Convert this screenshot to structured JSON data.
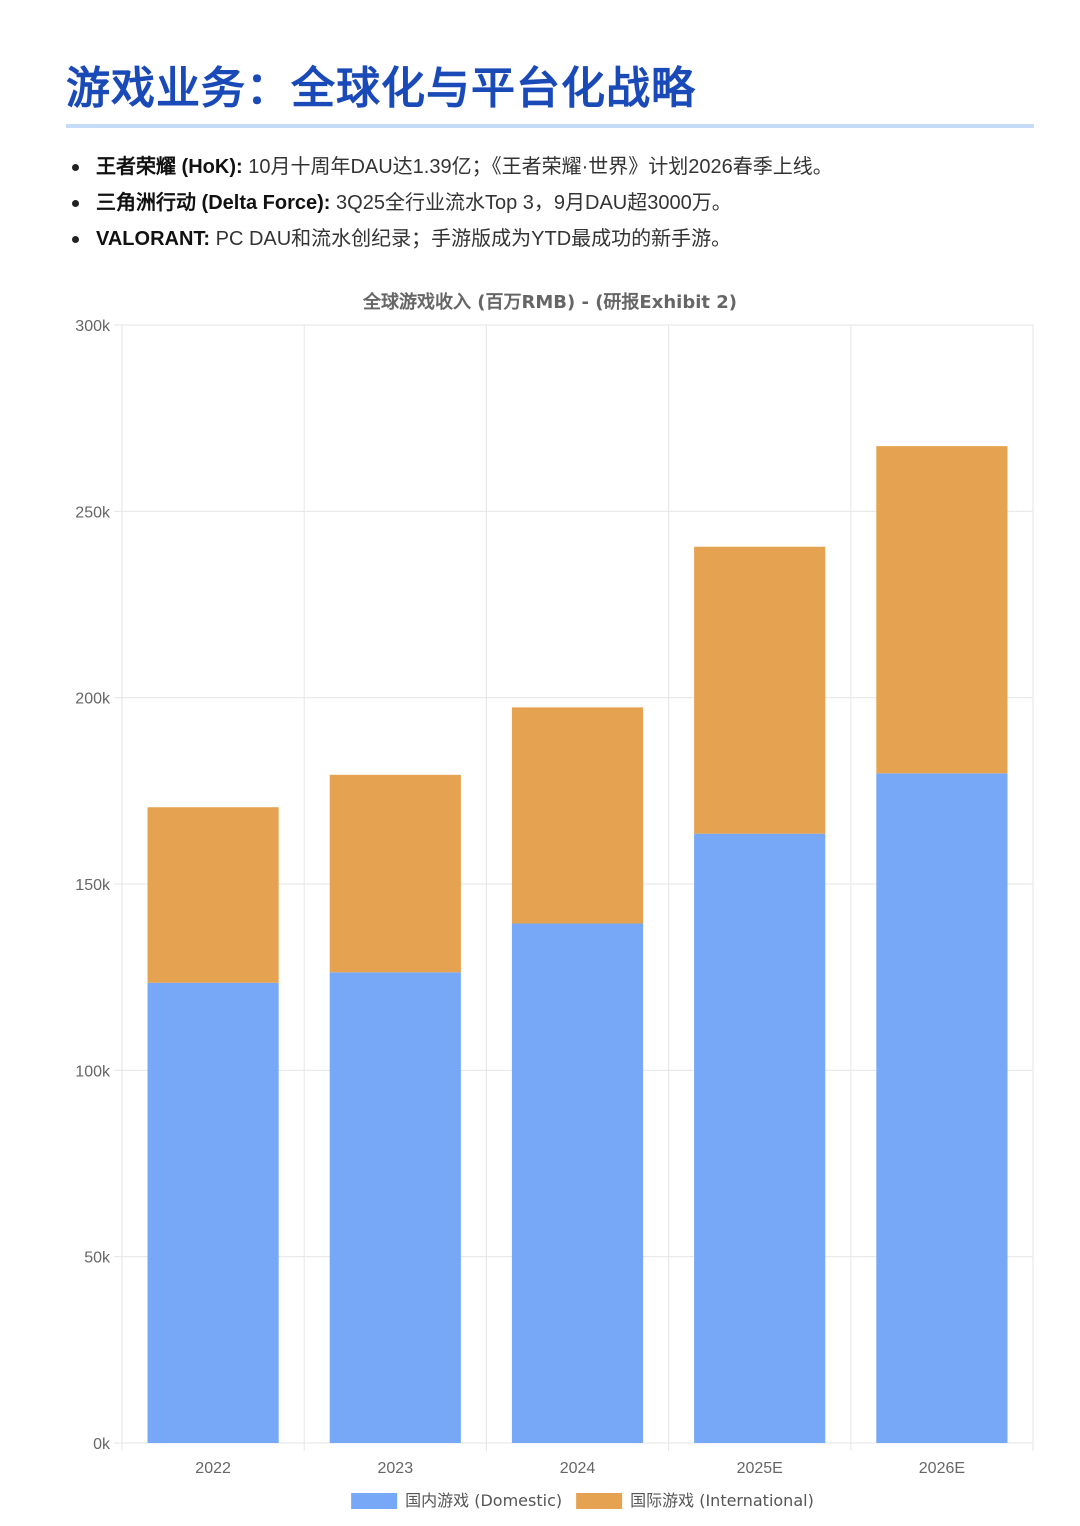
{
  "header": {
    "title": "游戏业务：全球化与平台化战略"
  },
  "bullets": [
    {
      "label": "王者荣耀 (HoK):",
      "text": " 10月十周年DAU达1.39亿；《王者荣耀·世界》计划2026春季上线。"
    },
    {
      "label": "三角洲行动 (Delta Force):",
      "text": " 3Q25全行业流水Top 3，9月DAU超3000万。"
    },
    {
      "label": "VALORANT:",
      "text": " PC DAU和流水创纪录；手游版成为YTD最成功的新手游。"
    }
  ],
  "chart_data": {
    "type": "bar",
    "stacked": true,
    "title": "全球游戏收入 (百万RMB) - (研报Exhibit 2)",
    "categories": [
      "2022",
      "2023",
      "2024",
      "2025E",
      "2026E"
    ],
    "series": [
      {
        "name": "国内游戏 (Domestic)",
        "color": "#76a8f7",
        "values": [
          123500,
          126300,
          139400,
          163500,
          179700
        ]
      },
      {
        "name": "国际游戏 (International)",
        "color": "#e5a352",
        "values": [
          47100,
          53000,
          58000,
          77000,
          87800
        ]
      }
    ],
    "ylim": [
      0,
      300000
    ],
    "yticks": [
      0,
      50000,
      100000,
      150000,
      200000,
      250000,
      300000
    ],
    "ytick_labels": [
      "0k",
      "50k",
      "100k",
      "150k",
      "200k",
      "250k",
      "300k"
    ],
    "grid": true,
    "legend": "bottom"
  }
}
